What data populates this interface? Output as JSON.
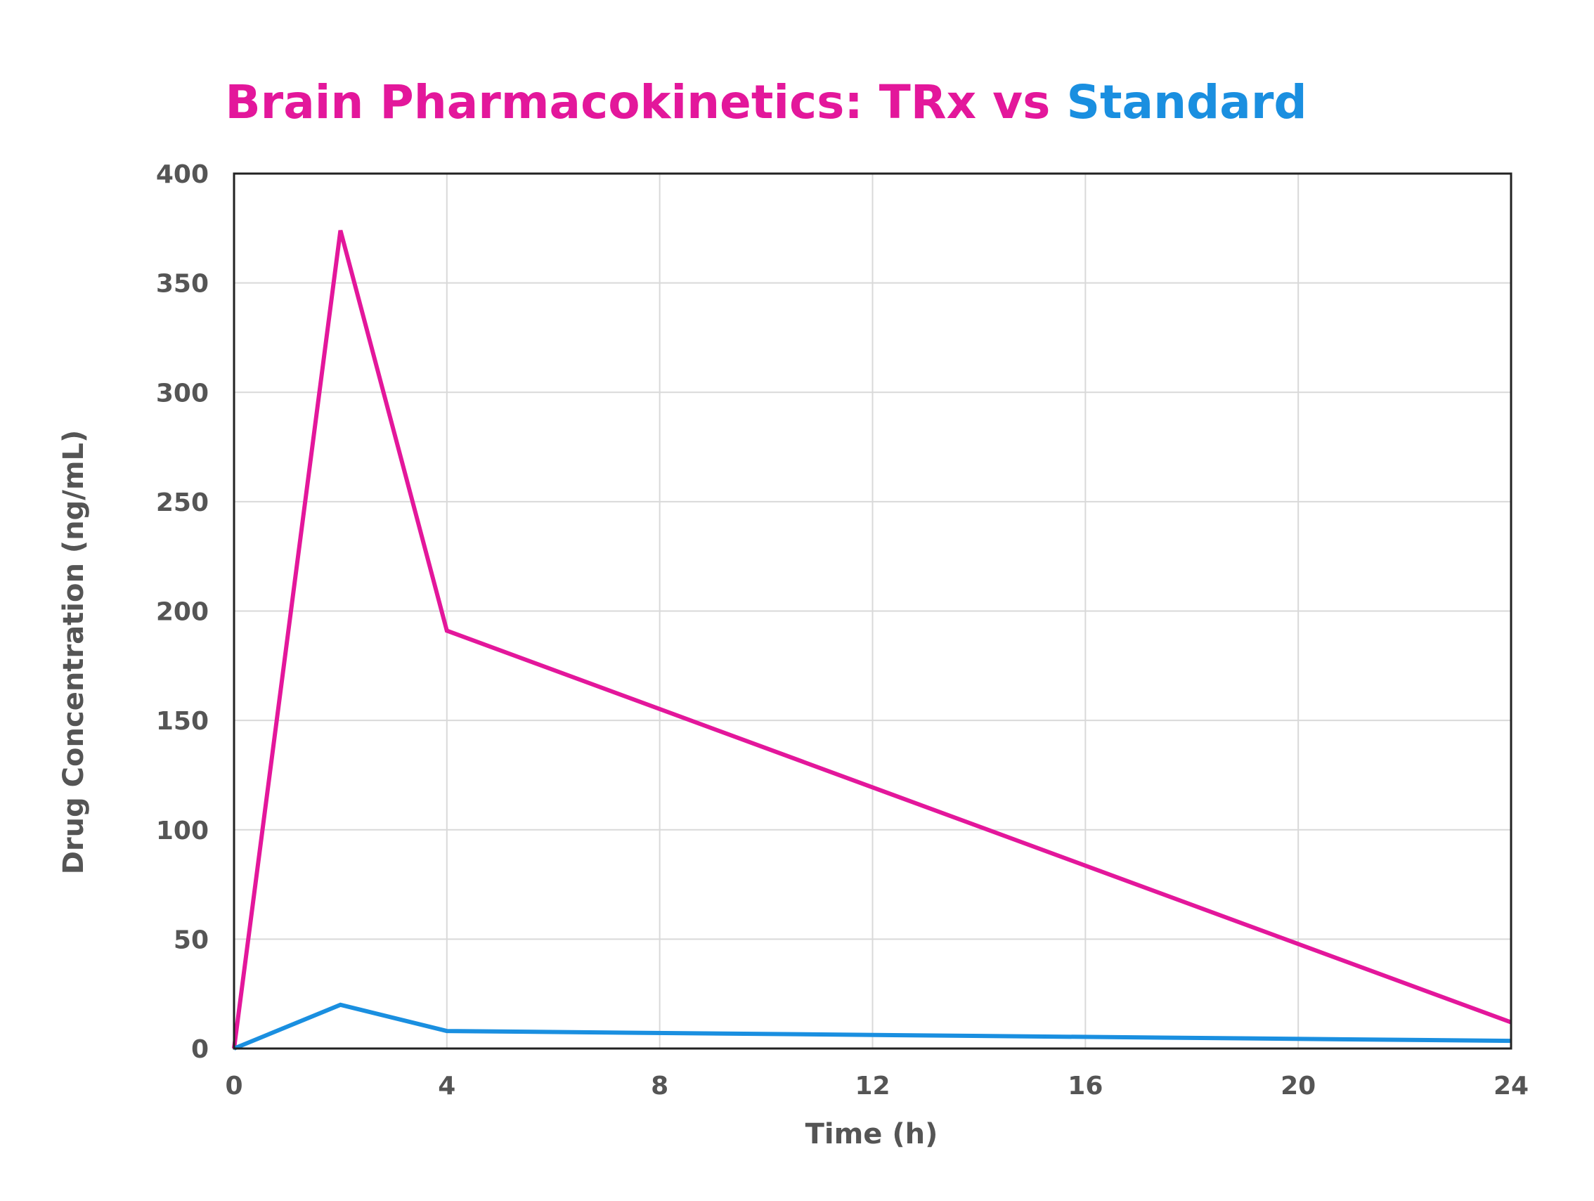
{
  "chart_data": {
    "type": "line",
    "title_parts": [
      {
        "text": "Brain Pharmacokinetics: TRx vs ",
        "color": "#E3179B"
      },
      {
        "text": "Standard",
        "color": "#1A8FE0"
      }
    ],
    "xlabel": "Time (h)",
    "ylabel": "Drug Concentration (ng/mL)",
    "xlim": [
      0,
      24
    ],
    "ylim": [
      0,
      400
    ],
    "xticks": [
      0,
      4,
      8,
      12,
      16,
      20,
      24
    ],
    "yticks": [
      0,
      50,
      100,
      150,
      200,
      250,
      300,
      350,
      400
    ],
    "grid": true,
    "series": [
      {
        "color": "#E3179B",
        "points": [
          [
            0,
            0
          ],
          [
            2,
            374
          ],
          [
            4,
            191
          ],
          [
            24,
            12
          ]
        ]
      },
      {
        "color": "#1A8FE0",
        "points": [
          [
            0,
            0
          ],
          [
            2,
            20
          ],
          [
            4,
            8
          ],
          [
            24,
            3.5
          ]
        ]
      }
    ]
  }
}
